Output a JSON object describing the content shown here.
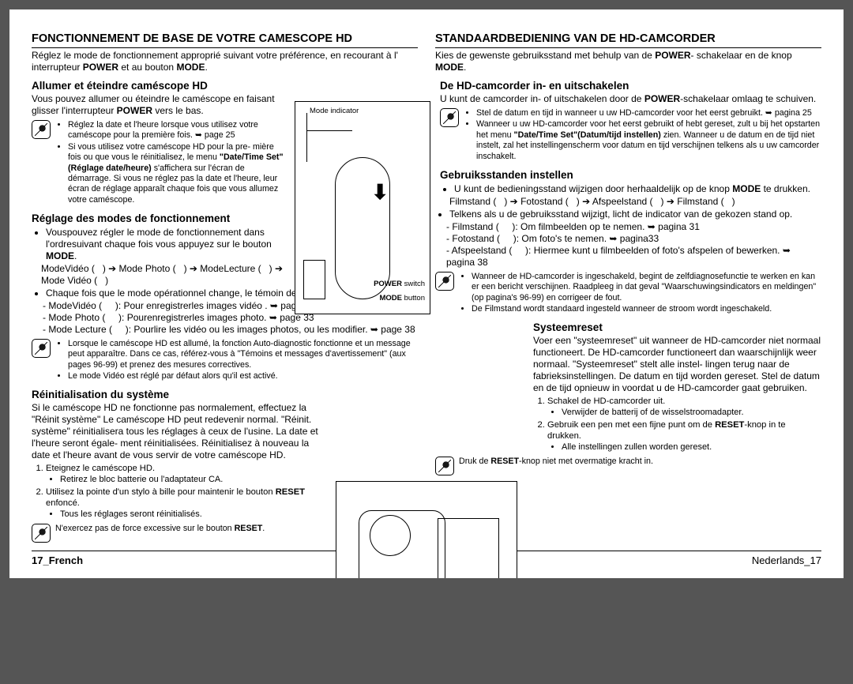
{
  "left": {
    "title": "FONCTIONNEMENT DE BASE DE VOTRE CAMESCOPE HD",
    "intro": "Réglez le mode de fonctionnement approprié suivant votre préférence, en recourant à l' interrupteur <b>POWER</b> et au bouton <b>MODE</b>.",
    "h1": "Allumer et éteindre caméscope HD",
    "p1": "Vous pouvez allumer ou éteindre le caméscope en faisant glisser l'interrupteur <b>POWER</b> vers le bas.",
    "note1": [
      "Réglez la date et l'heure lorsque vous utilisez votre caméscope pour la première fois. ➥ page 25",
      "Si vous utilisez votre caméscope HD pour la pre- mière fois ou que vous le réinitialisez, le menu <b>\"Date/Time Set\"(Réglage date/heure)</b> s'affichera sur l'écran de démarrage. Si vous ne réglez pas la date et l'heure, leur écran de réglage apparaît chaque fois que vous allumez votre caméscope."
    ],
    "h2": "Réglage des modes de fonctionnement",
    "modes_b1": "Vouspouvez régler le mode de fonctionnement dans l'ordresuivant chaque fois vous appuyez sur le bouton <b>MODE</b>.",
    "modes_line": "ModeVidéo (&nbsp;&nbsp;&nbsp;) ➔ Mode Photo (&nbsp;&nbsp;&nbsp;) ➔ ModeLecture (&nbsp;&nbsp;&nbsp;) ➔ Mode Vidéo (&nbsp;&nbsp;&nbsp;)",
    "modes_b2": "Chaque fois que le mode opérationnel change, le témoin de mode respectif s'allume.",
    "modes_sub": [
      "ModeVidéo (&nbsp;&nbsp;&nbsp;&nbsp;&nbsp;): Pour enregistrerles images vidéo . ➥ page 31",
      "Mode Photo (&nbsp;&nbsp;&nbsp;&nbsp;&nbsp;): Pourenregistrerles images photo. ➥ page 33",
      "Mode Lecture (&nbsp;&nbsp;&nbsp;&nbsp;&nbsp;): Pourlire les vidéo ou les images photos, ou les modifier. ➥ page 38"
    ],
    "note2": [
      "Lorsque le caméscope HD est allumé, la fonction Auto-diagnostic fonctionne et un message peut apparaître. Dans ce cas, référez-vous à \"Témoins et messages d'avertissement\" (aux pages 96-99) et prenez des mesures correctives.",
      "Le mode Vidéo est réglé par défaut alors qu'il est activé."
    ],
    "h3": "Réinitialisation du système",
    "p3": "Si le caméscope HD ne fonctionne pas normalement, effectuez la \"Réinit système\" Le caméscope HD peut redevenir normal. \"Réinit. système\" réinitialisera tous les réglages à ceux de l'usine. La date et l'heure seront égale- ment réinitialisées. Réinitialisez à nouveau la date et l'heure avant de vous servir de votre caméscope HD.",
    "ol": [
      {
        "t": "Eteignez le caméscope HD.",
        "sub": [
          "Retirez le bloc batterie ou l'adaptateur CA."
        ]
      },
      {
        "t": "Utilisez la pointe d'un stylo à bille pour maintenir le bouton <b>RESET</b> enfoncé.",
        "sub": [
          "Tous les réglages seront réinitialisés."
        ]
      }
    ],
    "note3": "N'exercez pas de force excessive sur le bouton <b>RESET</b>."
  },
  "right": {
    "title": "STANDAARDBEDIENING VAN DE HD-CAMCORDER",
    "intro": "Kies de gewenste gebruiksstand met behulp van de <b>POWER</b>- schakelaar en de knop <b>MODE</b>.",
    "h1": "De HD-camcorder in- en uitschakelen",
    "p1": "U kunt de camcorder in- of uitschakelen door de <b>POWER</b>-schakelaar omlaag te schuiven.",
    "note1": [
      "Stel de datum en tijd in wanneer u uw HD-camcorder voor het eerst gebruikt. ➥ pagina 25",
      "Wanneer u uw HD-camcorder voor het eerst gebruikt of hebt gereset, zult u bij het opstarten het menu <b>\"Date/Time Set\"(Datum/tijd instellen)</b> zien. Wanneer u de datum en de tijd niet instelt, zal het instellingenscherm voor datum en tijd verschijnen telkens als u uw camcorder inschakelt."
    ],
    "h2": "Gebruiksstanden instellen",
    "modes_b1": "U kunt de bedieningsstand wijzigen door herhaaldelijk op de knop <b>MODE</b> te drukken.",
    "modes_line": "Filmstand (&nbsp;&nbsp;&nbsp;) ➔ Fotostand (&nbsp;&nbsp;&nbsp;) ➔ Afspeelstand (&nbsp;&nbsp;&nbsp;) ➔ Filmstand (&nbsp;&nbsp;&nbsp;)",
    "modes_b2": "Telkens als u de gebruiksstand wijzigt, licht de indicator van de gekozen stand op.",
    "modes_sub": [
      "Filmstand (&nbsp;&nbsp;&nbsp;&nbsp;&nbsp;): Om filmbeelden op te nemen. ➥ pagina 31",
      "Fotostand (&nbsp;&nbsp;&nbsp;&nbsp;&nbsp;): Om foto's te nemen. ➥ pagina33",
      "Afspeelstand (&nbsp;&nbsp;&nbsp;&nbsp;&nbsp;): Hiermee kunt u filmbeelden of foto's afspelen of bewerken. ➥ pagina 38"
    ],
    "note2": [
      "Wanneer de HD-camcorder is ingeschakeld, begint de zelfdiagnosefunctie te werken en kan er een bericht verschijnen. Raadpleeg in dat geval \"Waarschuwingsindicators en meldingen\" (op pagina's 96-99) en corrigeer de fout.",
      "De Filmstand wordt standaard ingesteld wanneer de stroom wordt ingeschakeld."
    ],
    "h3": "Systeemreset",
    "p3": "Voer een \"systeemreset\" uit wanneer de HD-camcorder niet normaal functioneert. De HD-camcorder functioneert dan waarschijnlijk weer normaal. \"Systeemreset\" stelt alle instel- lingen terug naar de fabrieksinstellingen. De datum en tijd worden gereset. Stel de datum en de tijd opnieuw in voordat u de HD-camcorder gaat gebruiken.",
    "ol": [
      {
        "t": "Schakel de HD-camcorder uit.",
        "sub": [
          "Verwijder de batterij of de wisselstroomadapter."
        ]
      },
      {
        "t": "Gebruik een pen met een fijne punt om de <b>RESET</b>-knop in te drukken.",
        "sub": [
          "Alle instellingen zullen worden gereset."
        ]
      }
    ],
    "note3": "Druk de <b>RESET</b>-knop niet met overmatige kracht in."
  },
  "fig1": {
    "mode": "Mode indicator",
    "power": "<b>POWER</b> switch",
    "btn": "<b>MODE</b> button"
  },
  "footer": {
    "left": "17_French",
    "right": "Nederlands_17"
  }
}
